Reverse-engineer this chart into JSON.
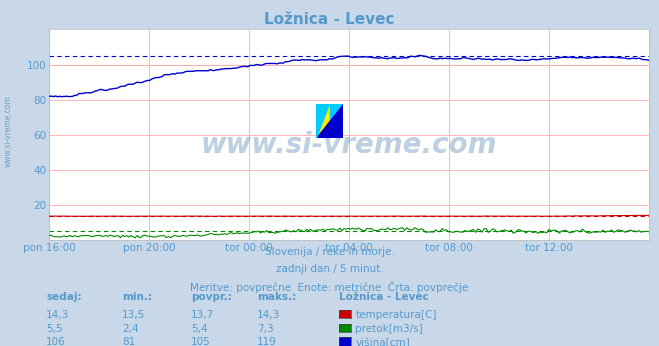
{
  "title": "Ložnica - Levec",
  "background_color": "#c8d8e8",
  "plot_bg_color": "#ffffff",
  "grid_color": "#ffaaaa",
  "grid_minor_color": "#ffdddd",
  "text_color": "#5599cc",
  "text_color_dark": "#4477aa",
  "subtitle_lines": [
    "Slovenija / reke in morje.",
    "zadnji dan / 5 minut.",
    "Meritve: povprečne  Enote: metrične  Črta: povprečje"
  ],
  "xlabel_ticks": [
    "pon 16:00",
    "pon 20:00",
    "tor 00:00",
    "tor 04:00",
    "tor 08:00",
    "tor 12:00"
  ],
  "yticks": [
    20,
    40,
    60,
    80,
    100
  ],
  "ylim": [
    0,
    120
  ],
  "xlim_min": 0,
  "xlim_max": 287,
  "n_points": 288,
  "watermark": "www.si-vreme.com",
  "legend_title": "Ložnica - Levec",
  "temp_color": "#cc0000",
  "flow_color": "#008800",
  "height_color": "#0000cc",
  "temp_avg": 13.7,
  "flow_avg": 5.4,
  "height_avg": 105,
  "table_headers": [
    "sedaj:",
    "min.:",
    "povpr.:",
    "maks.:"
  ],
  "row_data": [
    [
      "14,3",
      "13,5",
      "13,7",
      "14,3"
    ],
    [
      "5,5",
      "2,4",
      "5,4",
      "7,3"
    ],
    [
      "106",
      "81",
      "105",
      "119"
    ]
  ],
  "row_labels": [
    "temperatura[C]",
    "pretok[m3/s]",
    "višina[cm]"
  ],
  "row_colors": [
    "#cc0000",
    "#008800",
    "#0000cc"
  ]
}
